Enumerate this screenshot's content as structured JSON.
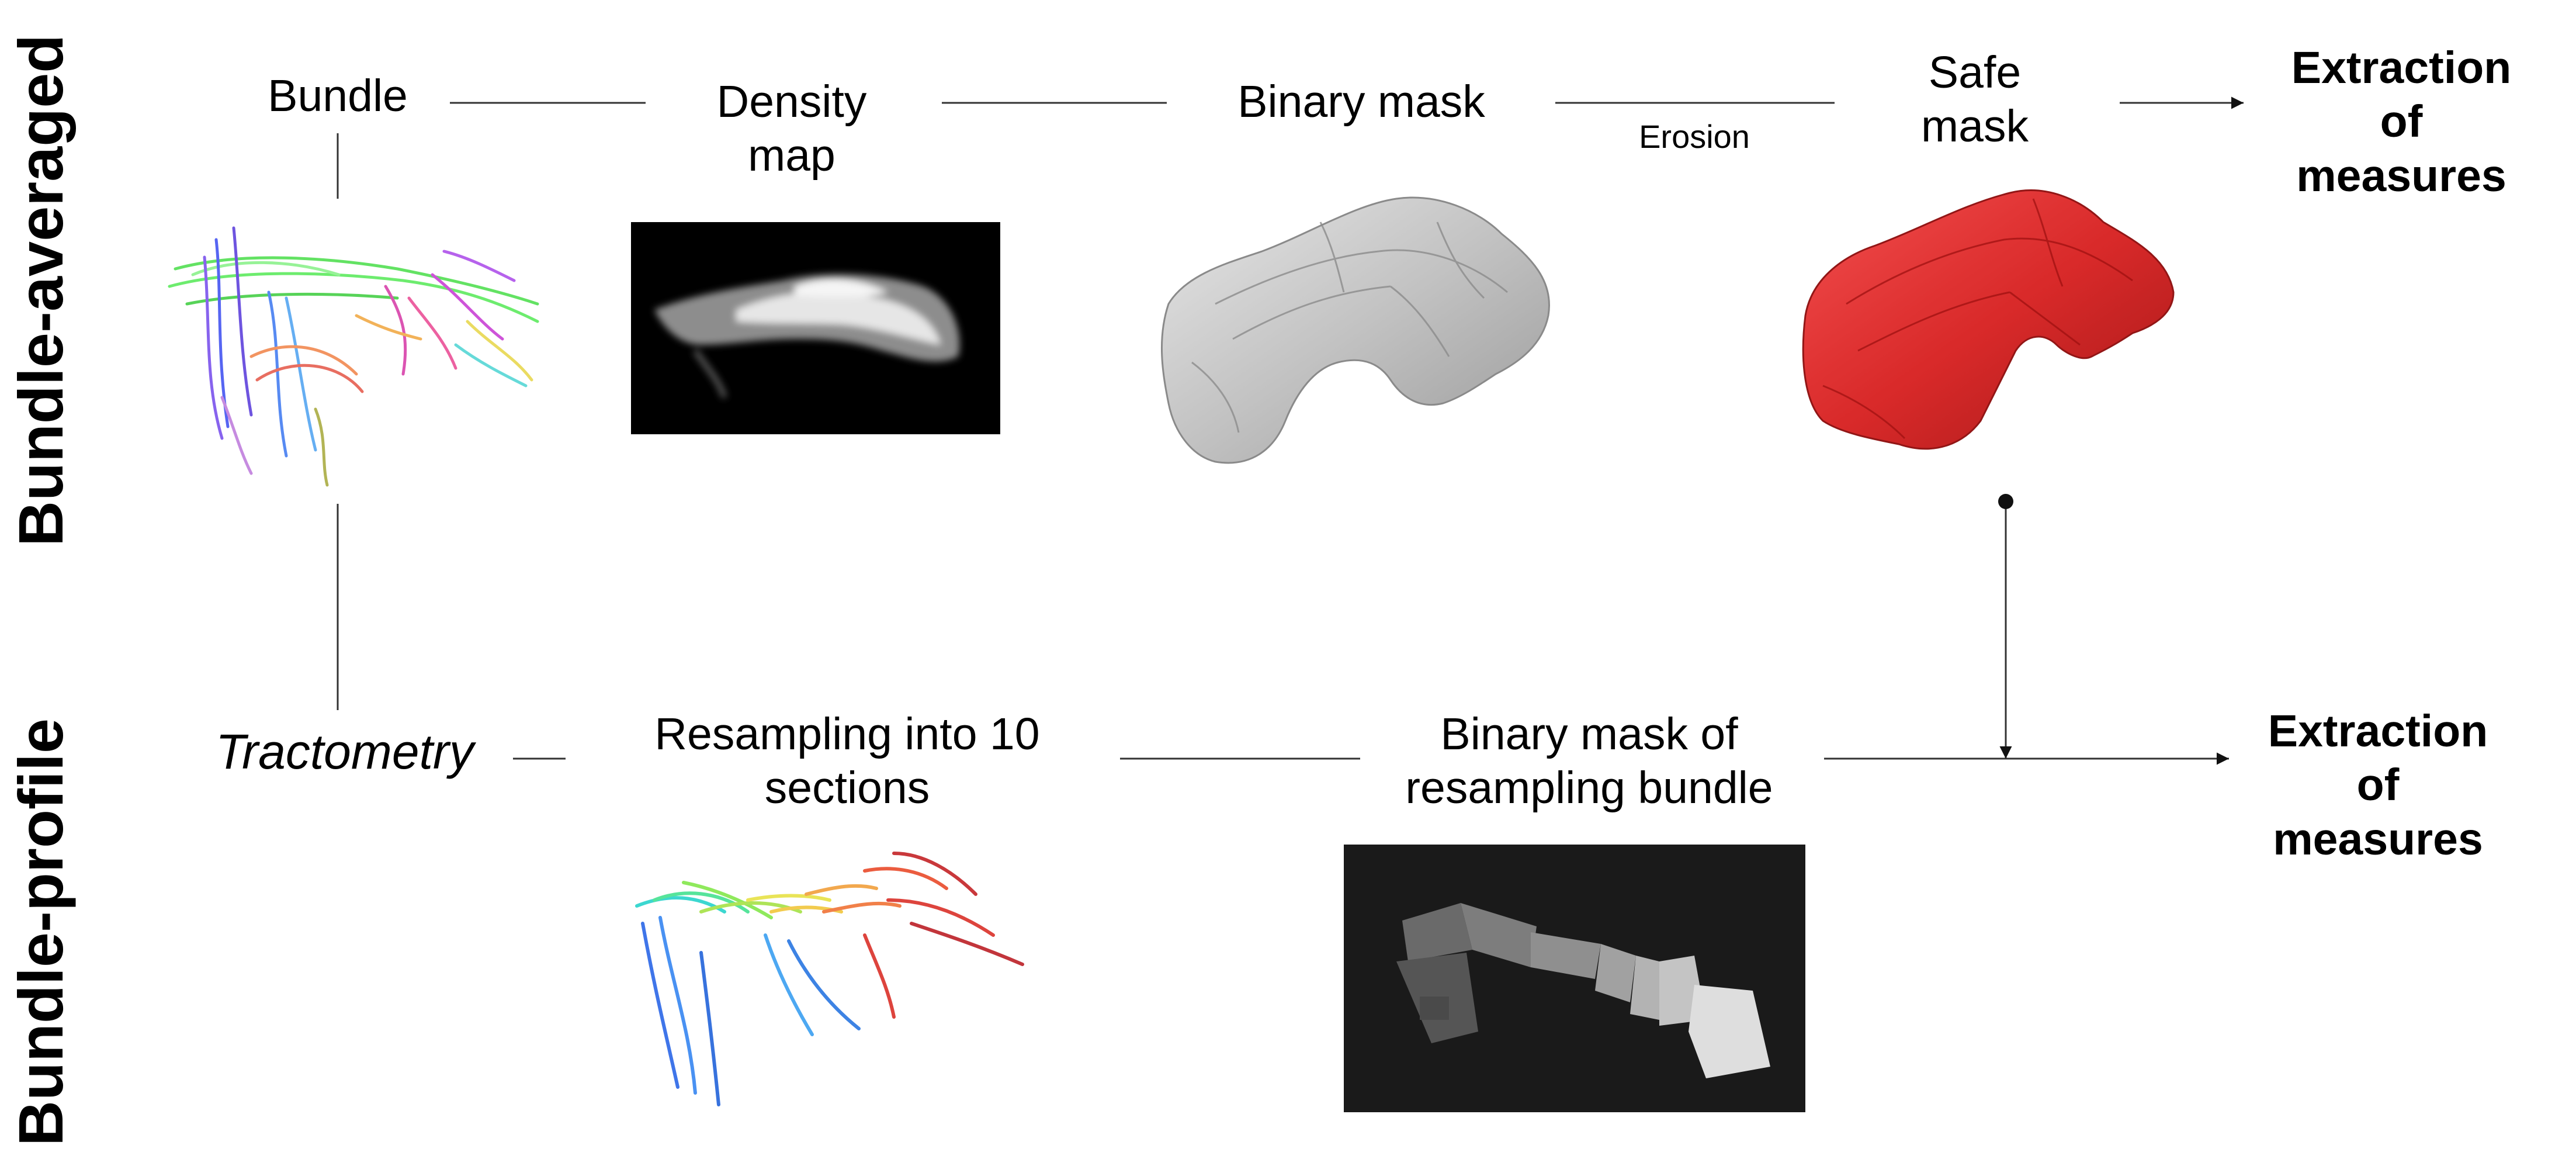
{
  "rows": {
    "top": "Bundle-averaged",
    "bottom": "Bundle-profile"
  },
  "top_row": {
    "bundle": "Bundle",
    "density_map": "Density\nmap",
    "binary_mask": "Binary mask",
    "erosion": "Erosion",
    "safe_mask": "Safe\nmask",
    "extraction": "Extraction\nof\nmeasures"
  },
  "bottom_row": {
    "tractometry": "Tractometry",
    "resampling": "Resampling into 10\nsections",
    "binary_mask_resampling": "Binary mask of\nresampling bundle",
    "extraction": "Extraction\nof\nmeasures"
  },
  "colors": {
    "line": "#333333",
    "density_bg": "#000000",
    "mask_gray": "#c8c8c8",
    "safe_red": "#d81f1f",
    "section_bg": "#1a1a1a"
  },
  "icons": {
    "bundle_image": "tractography-bundle-rgb",
    "density_image": "density-map-grayscale",
    "binary_mask_image": "binary-mask-surface-gray",
    "safe_mask_image": "safe-mask-surface-red",
    "resampled_image": "resampled-bundle-rainbow",
    "section_mask_image": "section-mask-grayscale"
  }
}
